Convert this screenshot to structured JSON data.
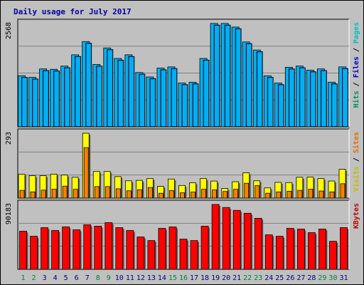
{
  "chart_data": {
    "type": "bar",
    "title": "Daily usage for July 2017",
    "categories": [
      "1",
      "2",
      "3",
      "4",
      "5",
      "6",
      "7",
      "8",
      "9",
      "10",
      "11",
      "12",
      "13",
      "14",
      "15",
      "16",
      "17",
      "18",
      "19",
      "20",
      "21",
      "22",
      "23",
      "24",
      "25",
      "26",
      "27",
      "28",
      "29",
      "30",
      "31"
    ],
    "weekend_days": [
      "1",
      "2",
      "8",
      "9",
      "15",
      "16",
      "22",
      "23",
      "29",
      "30"
    ],
    "colors": {
      "background": "#c0c0c0",
      "plot_bg": "#c0c0c0",
      "gridline": "#808080",
      "title": "#0000a0",
      "weekday_label": "#000080",
      "weekend_label": "#008040",
      "hits": "#00b0f0",
      "files": "#0060c0",
      "pages": "#00c0c0",
      "visits": "#ffff00",
      "sites": "#ff8000",
      "kbytes": "#ff0000"
    },
    "panels": [
      {
        "name": "hits-files",
        "max_label": "2568",
        "ymax": 2568,
        "legend": [
          {
            "text": "Hits",
            "color": "#009060"
          },
          {
            "text": " / ",
            "color": "#000000"
          },
          {
            "text": "Files",
            "color": "#0000c0"
          },
          {
            "text": " / ",
            "color": "#000000"
          },
          {
            "text": "Pages",
            "color": "#00c0c0"
          }
        ],
        "series": [
          {
            "name": "Hits",
            "color": "#00b0f0",
            "values": [
              1270,
              1230,
              1440,
              1430,
              1510,
              1790,
              2120,
              1550,
              1960,
              1700,
              1790,
              1350,
              1240,
              1460,
              1490,
              1090,
              1110,
              1700,
              2570,
              2570,
              2480,
              2110,
              1910,
              1270,
              1090,
              1480,
              1510,
              1410,
              1440,
              1110,
              1490
            ]
          },
          {
            "name": "Files",
            "color": "#0060c0",
            "values": [
              1230,
              1190,
              1400,
              1390,
              1470,
              1750,
              2080,
              1510,
              1920,
              1660,
              1750,
              1310,
              1200,
              1420,
              1450,
              1050,
              1070,
              1660,
              2530,
              2530,
              2440,
              2070,
              1870,
              1230,
              1050,
              1440,
              1470,
              1370,
              1400,
              1070,
              1450
            ]
          }
        ]
      },
      {
        "name": "visits-sites",
        "max_label": "293",
        "ymax": 293,
        "legend": [
          {
            "text": "Visits",
            "color": "#c0c000"
          },
          {
            "text": " / ",
            "color": "#000000"
          },
          {
            "text": "Sites",
            "color": "#e07000"
          }
        ],
        "series": [
          {
            "name": "Visits",
            "color": "#ffff00",
            "values": [
              108,
              101,
              101,
              108,
              104,
              94,
              293,
              120,
              120,
              97,
              78,
              80,
              88,
              53,
              86,
              57,
              69,
              88,
              77,
              43,
              74,
              114,
              78,
              46,
              71,
              70,
              94,
              95,
              88,
              77,
              130
            ]
          },
          {
            "name": "Sites",
            "color": "#ff8000",
            "values": [
              35,
              28,
              36,
              40,
              54,
              40,
              228,
              52,
              52,
              42,
              33,
              38,
              48,
              22,
              34,
              24,
              27,
              40,
              37,
              30,
              40,
              67,
              56,
              22,
              28,
              31,
              35,
              40,
              32,
              28,
              65
            ]
          }
        ]
      },
      {
        "name": "kbytes",
        "max_label": "90183",
        "ymax": 90183,
        "legend": [
          {
            "text": "KBytes",
            "color": "#c00000"
          }
        ],
        "series": [
          {
            "name": "KBytes",
            "color": "#ff0000",
            "values": [
              53000,
              46000,
              58000,
              54000,
              59000,
              55000,
              62000,
              60000,
              65000,
              58000,
              54000,
              45000,
              40000,
              57000,
              59000,
              42000,
              40000,
              60000,
              90183,
              86000,
              82000,
              78000,
              71000,
              48000,
              46000,
              57000,
              56000,
              51000,
              56000,
              39000,
              58000
            ]
          }
        ]
      }
    ]
  }
}
